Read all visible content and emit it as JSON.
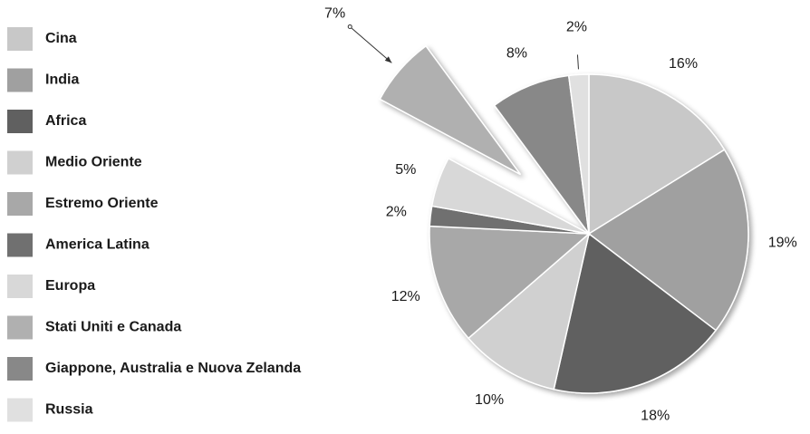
{
  "chart_data": {
    "type": "pie",
    "categories": [
      "Cina",
      "India",
      "Africa",
      "Medio Oriente",
      "Estremo Oriente",
      "America Latina",
      "Europa",
      "Stati Uniti e Canada",
      "Giappone, Australia e Nuova Zelanda",
      "Russia"
    ],
    "values": [
      16,
      19,
      18,
      10,
      12,
      2,
      5,
      7,
      8,
      2
    ],
    "value_labels": [
      "16%",
      "19%",
      "18%",
      "10%",
      "12%",
      "2%",
      "5%",
      "7%",
      "8%",
      "2%"
    ],
    "colors": [
      "#c8c8c8",
      "#a0a0a0",
      "#606060",
      "#d0d0d0",
      "#a8a8a8",
      "#707070",
      "#d8d8d8",
      "#b0b0b0",
      "#888888",
      "#e0e0e0"
    ],
    "explode": "Stati Uniti e Canada",
    "legend": "left"
  }
}
